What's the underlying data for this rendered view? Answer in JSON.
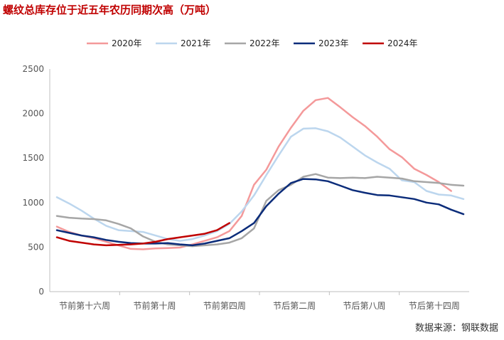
{
  "title": "螺纹总库存位于近五年农历同期次高（万吨）",
  "source": "数据来源：钢联数据",
  "chart_data": {
    "type": "line",
    "title": "螺纹总库存位于近五年农历同期次高（万吨）",
    "ylim": [
      0,
      2500
    ],
    "yticks": [
      0,
      500,
      1000,
      1500,
      2000,
      2500
    ],
    "xlim": [
      0,
      28
    ],
    "x_tick_labels": [
      "节前第十六周",
      "节前第十周",
      "节前第四周",
      "节后第二周",
      "节后第八周",
      "节后第十四周"
    ],
    "grid": false,
    "legend_position": "top",
    "series": [
      {
        "name": "2020年",
        "color": "#f4999a",
        "values": [
          730,
          670,
          630,
          600,
          560,
          520,
          480,
          475,
          485,
          490,
          495,
          530,
          570,
          610,
          680,
          850,
          1200,
          1370,
          1630,
          1840,
          2030,
          2150,
          2175,
          2070,
          1960,
          1860,
          1740,
          1600,
          1510,
          1380,
          1310,
          1230,
          1130
        ]
      },
      {
        "name": "2021年",
        "color": "#bcd6ee",
        "values": [
          1060,
          990,
          910,
          820,
          740,
          690,
          680,
          670,
          630,
          590,
          570,
          590,
          630,
          680,
          760,
          900,
          1080,
          1310,
          1530,
          1740,
          1830,
          1835,
          1800,
          1730,
          1630,
          1530,
          1450,
          1380,
          1250,
          1230,
          1130,
          1090,
          1080,
          1040
        ]
      },
      {
        "name": "2022年",
        "color": "#a6a6a6",
        "values": [
          850,
          830,
          820,
          815,
          800,
          760,
          710,
          620,
          560,
          530,
          520,
          510,
          520,
          530,
          550,
          600,
          710,
          1020,
          1140,
          1200,
          1290,
          1320,
          1280,
          1275,
          1280,
          1275,
          1290,
          1280,
          1270,
          1240,
          1230,
          1220,
          1200,
          1190
        ]
      },
      {
        "name": "2023年",
        "color": "#0b2c7a",
        "values": [
          690,
          660,
          630,
          610,
          580,
          560,
          545,
          540,
          540,
          545,
          530,
          520,
          540,
          570,
          600,
          680,
          770,
          960,
          1100,
          1220,
          1265,
          1260,
          1240,
          1190,
          1140,
          1110,
          1085,
          1080,
          1060,
          1040,
          1000,
          980,
          920,
          870
        ]
      },
      {
        "name": "2024年",
        "color": "#c00000",
        "values": [
          610,
          570,
          550,
          530,
          520,
          525,
          530,
          540,
          560,
          590,
          610,
          630,
          650,
          690,
          770
        ]
      }
    ]
  }
}
